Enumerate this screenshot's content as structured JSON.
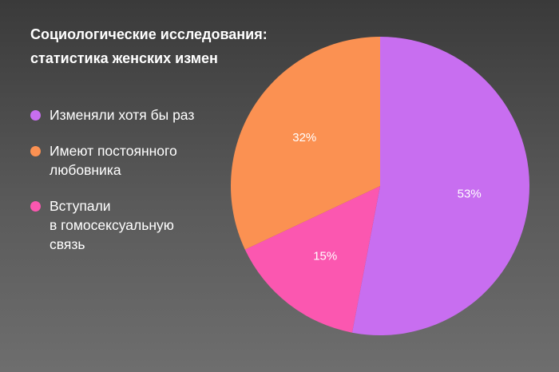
{
  "title": {
    "lines": [
      "Социологические исследования:",
      "статистика женских измен"
    ]
  },
  "chart_data": {
    "type": "pie",
    "title": "Социологические исследования: статистика женских измен",
    "legend_placement": "left",
    "slices": [
      {
        "label_lines": [
          "Изменяли хотя бы раз"
        ],
        "value": 53,
        "value_label": "53%",
        "color": "#c86ef0"
      },
      {
        "label_lines": [
          "Вступали",
          "в гомосексуальную",
          "связь"
        ],
        "value": 15,
        "value_label": "15%",
        "color": "#fb57b0"
      },
      {
        "label_lines": [
          "Имеют постоянного",
          "любовника"
        ],
        "value": 32,
        "value_label": "32%",
        "color": "#fb9152"
      }
    ],
    "legend_order": [
      0,
      2,
      1
    ]
  }
}
